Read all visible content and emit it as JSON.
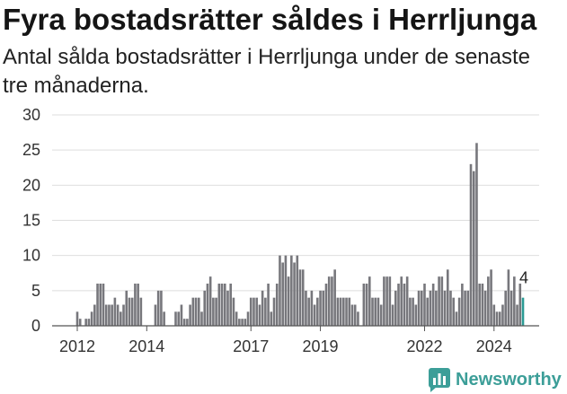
{
  "chart_data": {
    "type": "bar",
    "title": "Fyra bostadsrätter såldes i Herrljunga",
    "subtitle": "Antal sålda bostadsrätter i Herrljunga under de senaste tre månaderna.",
    "xlabel": "",
    "ylabel": "",
    "x": [
      "2012-01",
      "2012-02",
      "2012-03",
      "2012-04",
      "2012-05",
      "2012-06",
      "2012-07",
      "2012-08",
      "2012-09",
      "2012-10",
      "2012-11",
      "2012-12",
      "2013-01",
      "2013-02",
      "2013-03",
      "2013-04",
      "2013-05",
      "2013-06",
      "2013-07",
      "2013-08",
      "2013-09",
      "2013-10",
      "2013-11",
      "2013-12",
      "2014-01",
      "2014-02",
      "2014-03",
      "2014-04",
      "2014-05",
      "2014-06",
      "2014-07",
      "2014-08",
      "2014-09",
      "2014-10",
      "2014-11",
      "2014-12",
      "2015-01",
      "2015-02",
      "2015-03",
      "2015-04",
      "2015-05",
      "2015-06",
      "2015-07",
      "2015-08",
      "2015-09",
      "2015-10",
      "2015-11",
      "2015-12",
      "2016-01",
      "2016-02",
      "2016-03",
      "2016-04",
      "2016-05",
      "2016-06",
      "2016-07",
      "2016-08",
      "2016-09",
      "2016-10",
      "2016-11",
      "2016-12",
      "2017-01",
      "2017-02",
      "2017-03",
      "2017-04",
      "2017-05",
      "2017-06",
      "2017-07",
      "2017-08",
      "2017-09",
      "2017-10",
      "2017-11",
      "2017-12",
      "2018-01",
      "2018-02",
      "2018-03",
      "2018-04",
      "2018-05",
      "2018-06",
      "2018-07",
      "2018-08",
      "2018-09",
      "2018-10",
      "2018-11",
      "2018-12",
      "2019-01",
      "2019-02",
      "2019-03",
      "2019-04",
      "2019-05",
      "2019-06",
      "2019-07",
      "2019-08",
      "2019-09",
      "2019-10",
      "2019-11",
      "2019-12",
      "2020-01",
      "2020-02",
      "2020-03",
      "2020-04",
      "2020-05",
      "2020-06",
      "2020-07",
      "2020-08",
      "2020-09",
      "2020-10",
      "2020-11",
      "2020-12",
      "2021-01",
      "2021-02",
      "2021-03",
      "2021-04",
      "2021-05",
      "2021-06",
      "2021-07",
      "2021-08",
      "2021-09",
      "2021-10",
      "2021-11",
      "2021-12",
      "2022-01",
      "2022-02",
      "2022-03",
      "2022-04",
      "2022-05",
      "2022-06",
      "2022-07",
      "2022-08",
      "2022-09",
      "2022-10",
      "2022-11",
      "2022-12",
      "2023-01",
      "2023-02",
      "2023-03",
      "2023-04",
      "2023-05",
      "2023-06",
      "2023-07",
      "2023-08",
      "2023-09",
      "2023-10",
      "2023-11",
      "2023-12",
      "2024-01",
      "2024-02",
      "2024-03",
      "2024-04",
      "2024-05",
      "2024-06",
      "2024-07",
      "2024-08",
      "2024-09",
      "2024-10",
      "2024-11"
    ],
    "values": [
      2,
      1,
      0,
      1,
      1,
      2,
      3,
      6,
      6,
      6,
      3,
      3,
      3,
      4,
      3,
      2,
      3,
      5,
      4,
      4,
      6,
      6,
      4,
      0,
      0,
      0,
      0,
      3,
      5,
      5,
      2,
      0,
      0,
      0,
      2,
      2,
      3,
      1,
      1,
      3,
      4,
      4,
      4,
      2,
      5,
      6,
      7,
      4,
      4,
      6,
      6,
      6,
      5,
      6,
      4,
      2,
      1,
      1,
      1,
      2,
      4,
      4,
      4,
      3,
      5,
      4,
      6,
      2,
      4,
      6,
      10,
      9,
      10,
      7,
      10,
      9,
      10,
      8,
      8,
      5,
      4,
      5,
      3,
      4,
      5,
      5,
      6,
      7,
      7,
      8,
      4,
      4,
      4,
      4,
      4,
      3,
      3,
      2,
      0,
      6,
      6,
      7,
      4,
      4,
      4,
      3,
      7,
      7,
      7,
      3,
      5,
      6,
      7,
      6,
      7,
      4,
      4,
      3,
      5,
      5,
      6,
      4,
      5,
      6,
      5,
      7,
      7,
      5,
      8,
      5,
      4,
      2,
      4,
      6,
      5,
      5,
      23,
      22,
      26,
      6,
      6,
      5,
      7,
      8,
      3,
      2,
      2,
      3,
      5,
      8,
      5,
      7,
      3,
      6,
      4
    ],
    "xlim": [
      "2012-01",
      "2024-11"
    ],
    "ylim": [
      0,
      30
    ],
    "yticks": [
      0,
      5,
      10,
      15,
      20,
      25,
      30
    ],
    "xticks": [
      "2012",
      "2014",
      "2017",
      "2019",
      "2022",
      "2024"
    ],
    "grid": true,
    "legend": "none",
    "bar_color": "#77777c",
    "highlight": {
      "x": "2024-11",
      "label": "4",
      "color": "#2b9b94"
    }
  },
  "branding": {
    "logo_text": "Newsworthy",
    "logo_icon": "bar-chart-bubble-icon",
    "color": "#3c9e98"
  }
}
